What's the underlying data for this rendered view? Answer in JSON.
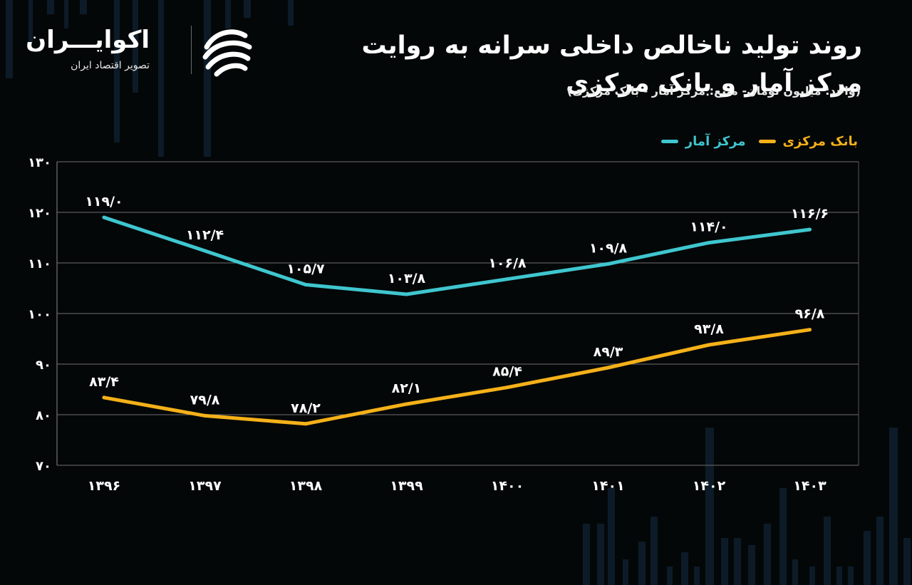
{
  "header": {
    "title_line1": "روند تولید ناخالص داخلی سرانه به روایت",
    "title_line2": "مرکز آمار و بانک مرکزی",
    "subtitle": "(واحد: میلیون تومان- منبع: مرکز آمار - بانک مرکزی)"
  },
  "logo": {
    "name": "اکوایـــران",
    "tagline": "تصویر اقتصاد ایران",
    "icon": "ecoiran-logo-icon"
  },
  "colors": {
    "background": "#040708",
    "amar": "#3fc6cf",
    "bank": "#f5b119",
    "grid": "#6e6e6e",
    "text": "#ffffff"
  },
  "chart_data": {
    "type": "line",
    "x": [
      "۱۳۹۶",
      "۱۳۹۷",
      "۱۳۹۸",
      "۱۳۹۹",
      "۱۴۰۰",
      "۱۴۰۱",
      "۱۴۰۲",
      "۱۴۰۳"
    ],
    "series": [
      {
        "name": "مرکز آمار",
        "color": "#3fc6cf",
        "values": [
          119.0,
          112.4,
          105.7,
          103.8,
          106.8,
          109.8,
          114.0,
          116.6
        ],
        "labels": [
          "۱۱۹/۰",
          "۱۱۲/۴",
          "۱۰۵/۷",
          "۱۰۳/۸",
          "۱۰۶/۸",
          "۱۰۹/۸",
          "۱۱۴/۰",
          "۱۱۶/۶"
        ]
      },
      {
        "name": "بانک مرکزی",
        "color": "#f5b119",
        "values": [
          83.4,
          79.8,
          78.2,
          82.1,
          85.4,
          89.3,
          93.8,
          96.8
        ],
        "labels": [
          "۸۳/۴",
          "۷۹/۸",
          "۷۸/۲",
          "۸۲/۱",
          "۸۵/۴",
          "۸۹/۳",
          "۹۳/۸",
          "۹۶/۸"
        ]
      }
    ],
    "yticks": [
      70,
      80,
      90,
      100,
      110,
      120,
      130
    ],
    "ytick_labels": [
      "۷۰",
      "۸۰",
      "۹۰",
      "۱۰۰",
      "۱۱۰",
      "۱۲۰",
      "۱۳۰"
    ],
    "ylim": [
      70,
      130
    ],
    "grid": true,
    "legend_position": "top-right",
    "xlabel": "",
    "ylabel": ""
  }
}
